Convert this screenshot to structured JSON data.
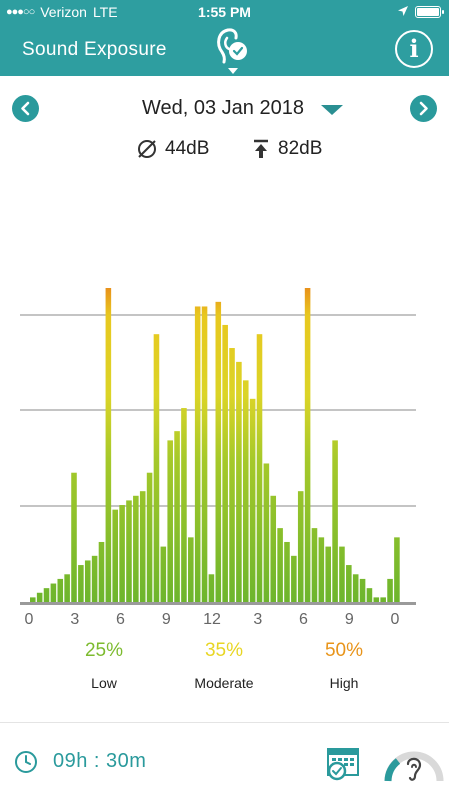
{
  "status_bar": {
    "carrier": "Verizon",
    "network": "LTE",
    "time": "1:55 PM"
  },
  "header": {
    "title": "Sound Exposure"
  },
  "date_nav": {
    "date": "Wed, 03 Jan 2018"
  },
  "stats": {
    "average": "44dB",
    "maximum": "82dB"
  },
  "colors": {
    "teal": "#2e9ea0",
    "low": "#7dbb2f",
    "moderate": "#e8d624",
    "high": "#e8941a"
  },
  "chart_data": {
    "type": "bar",
    "tick_labels": [
      "0",
      "3",
      "6",
      "9",
      "12",
      "3",
      "6",
      "9",
      "0"
    ],
    "values": [
      1,
      2,
      3,
      4,
      5,
      6,
      28,
      8,
      9,
      10,
      13,
      68,
      20,
      21,
      22,
      23,
      24,
      28,
      58,
      12,
      35,
      37,
      42,
      14,
      64,
      64,
      6,
      65,
      60,
      55,
      52,
      48,
      44,
      58,
      30,
      23,
      16,
      13,
      10,
      24,
      68,
      16,
      14,
      12,
      35,
      12,
      8,
      6,
      5,
      3,
      1,
      1,
      5,
      14
    ],
    "series_shares": [
      {
        "name": "Low",
        "percent": "25%"
      },
      {
        "name": "Moderate",
        "percent": "35%"
      },
      {
        "name": "High",
        "percent": "50%"
      }
    ],
    "grid": true
  },
  "categories": {
    "low_pct": "25%",
    "low_label": "Low",
    "moderate_pct": "35%",
    "moderate_label": "Moderate",
    "high_pct": "50%",
    "high_label": "High"
  },
  "footer": {
    "duration": "09h : 30m"
  },
  "icons": {
    "prev": "chevron-left-icon",
    "next": "chevron-right-icon",
    "info": "info-icon",
    "average": "average-icon",
    "maximum": "maximum-icon",
    "clock": "clock-icon",
    "calendar": "calendar-icon",
    "hearing": "ear-icon"
  }
}
